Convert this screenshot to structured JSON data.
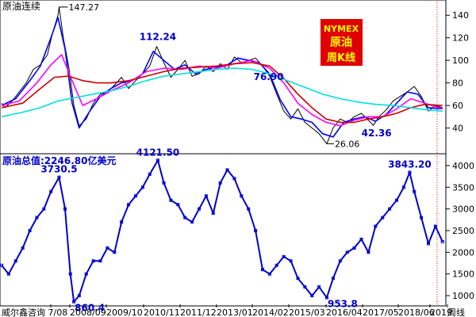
{
  "chart_data": [
    {
      "type": "line",
      "panel": "upper",
      "title": "原油连续",
      "badge": [
        "NYMEX",
        "原油",
        "周K线"
      ],
      "ylim": [
        20,
        150
      ],
      "y_ticks": [
        40,
        60,
        80,
        100,
        120,
        140
      ],
      "grid": false,
      "annotations": [
        {
          "text": "147.27",
          "x": 2008.53,
          "y": 147.27
        },
        {
          "text": "112.24",
          "x": 2011.33,
          "y": 112.24
        },
        {
          "text": "76.90",
          "x": 2014.47,
          "y": 76.9
        },
        {
          "text": "26.06",
          "x": 2016.12,
          "y": 26.06
        },
        {
          "text": "42.36",
          "x": 2017.44,
          "y": 42.36
        }
      ],
      "series": [
        {
          "role": "price",
          "color": "#000000",
          "x": [
            2006.9,
            2007.0,
            2007.2,
            2007.4,
            2007.6,
            2007.8,
            2008.0,
            2008.2,
            2008.35,
            2008.5,
            2008.53,
            2008.65,
            2008.8,
            2008.95,
            2009.1,
            2009.3,
            2009.5,
            2009.7,
            2009.9,
            2010.1,
            2010.3,
            2010.5,
            2010.7,
            2010.9,
            2011.1,
            2011.3,
            2011.5,
            2011.7,
            2011.9,
            2012.1,
            2012.3,
            2012.5,
            2012.7,
            2012.9,
            2013.1,
            2013.3,
            2013.5,
            2013.7,
            2013.9,
            2014.1,
            2014.3,
            2014.5,
            2014.7,
            2014.9,
            2015.1,
            2015.3,
            2015.5,
            2015.7,
            2015.9,
            2016.12,
            2016.3,
            2016.5,
            2016.7,
            2016.9,
            2017.1,
            2017.3,
            2017.44,
            2017.6,
            2017.8,
            2018.0,
            2018.2,
            2018.4,
            2018.6,
            2018.8,
            2019.0,
            2019.2,
            2019.4
          ],
          "y": [
            62,
            58,
            64,
            72,
            80,
            92,
            96,
            105,
            125,
            140,
            147.27,
            120,
            95,
            60,
            42,
            48,
            62,
            70,
            72,
            78,
            85,
            75,
            82,
            88,
            95,
            112.24,
            98,
            85,
            92,
            100,
            86,
            88,
            95,
            90,
            97,
            92,
            103,
            98,
            100,
            102,
            95,
            86,
            70,
            55,
            48,
            57,
            45,
            40,
            35,
            26.06,
            40,
            48,
            45,
            50,
            53,
            47,
            42.36,
            50,
            56,
            64,
            68,
            72,
            76.9,
            68,
            55,
            60,
            58
          ]
        },
        {
          "role": "ma-short",
          "color": "#0000ff",
          "x": [
            2006.9,
            2007.3,
            2007.7,
            2008.0,
            2008.3,
            2008.5,
            2008.7,
            2008.9,
            2009.1,
            2009.4,
            2009.7,
            2010.0,
            2010.3,
            2010.6,
            2010.9,
            2011.2,
            2011.5,
            2011.8,
            2012.1,
            2012.4,
            2012.7,
            2013.0,
            2013.3,
            2013.6,
            2013.9,
            2014.2,
            2014.5,
            2014.8,
            2015.1,
            2015.4,
            2015.7,
            2016.0,
            2016.3,
            2016.6,
            2016.9,
            2017.2,
            2017.5,
            2017.8,
            2018.1,
            2018.4,
            2018.7,
            2019.0,
            2019.4
          ],
          "y": [
            60,
            66,
            82,
            95,
            120,
            138,
            110,
            62,
            40,
            55,
            68,
            75,
            80,
            82,
            88,
            108,
            100,
            92,
            96,
            88,
            92,
            94,
            96,
            102,
            100,
            98,
            88,
            65,
            50,
            48,
            45,
            35,
            32,
            45,
            48,
            50,
            46,
            52,
            62,
            72,
            70,
            58,
            57
          ]
        },
        {
          "role": "ma-mid",
          "color": "#ff00ff",
          "x": [
            2006.9,
            2007.4,
            2007.9,
            2008.3,
            2008.6,
            2008.9,
            2009.2,
            2009.6,
            2010.0,
            2010.5,
            2011.0,
            2011.5,
            2012.0,
            2012.5,
            2013.0,
            2013.5,
            2014.0,
            2014.5,
            2014.9,
            2015.3,
            2015.7,
            2016.1,
            2016.5,
            2016.9,
            2017.3,
            2017.7,
            2018.1,
            2018.5,
            2018.9,
            2019.4
          ],
          "y": [
            60,
            64,
            80,
            96,
            105,
            82,
            60,
            66,
            73,
            80,
            90,
            93,
            92,
            95,
            93,
            97,
            100,
            93,
            80,
            62,
            52,
            45,
            42,
            47,
            50,
            50,
            57,
            66,
            62,
            57
          ]
        },
        {
          "role": "ma-long",
          "color": "#cc0000",
          "x": [
            2006.9,
            2007.5,
            2008.0,
            2008.4,
            2008.8,
            2009.2,
            2009.6,
            2010.0,
            2010.5,
            2011.0,
            2011.5,
            2012.0,
            2012.5,
            2013.0,
            2013.5,
            2014.0,
            2014.5,
            2014.9,
            2015.3,
            2015.7,
            2016.1,
            2016.5,
            2016.9,
            2017.3,
            2017.7,
            2018.1,
            2018.5,
            2018.9,
            2019.4
          ],
          "y": [
            58,
            62,
            75,
            85,
            86,
            82,
            80,
            80,
            82,
            86,
            90,
            93,
            94,
            95,
            97,
            98,
            95,
            84,
            70,
            58,
            48,
            45,
            45,
            48,
            50,
            53,
            58,
            61,
            60
          ]
        },
        {
          "role": "ma-xlong",
          "color": "#00e0e0",
          "x": [
            2006.9,
            2007.5,
            2008.0,
            2008.5,
            2009.0,
            2009.5,
            2010.0,
            2010.5,
            2011.0,
            2011.5,
            2012.0,
            2012.5,
            2013.0,
            2013.5,
            2014.0,
            2014.5,
            2015.0,
            2015.5,
            2016.0,
            2016.5,
            2017.0,
            2017.5,
            2018.0,
            2018.5,
            2019.0,
            2019.4
          ],
          "y": [
            50,
            54,
            58,
            64,
            67,
            70,
            73,
            77,
            82,
            86,
            88,
            90,
            92,
            93,
            92,
            88,
            82,
            76,
            70,
            66,
            63,
            61,
            60,
            58,
            56,
            55
          ]
        }
      ]
    },
    {
      "type": "line",
      "panel": "lower",
      "title": "原油总值:2246.80亿美元",
      "ylim": [
        800,
        4200
      ],
      "y_ticks": [
        1000,
        1500,
        2000,
        2500,
        3000,
        3500,
        4000
      ],
      "x_tick_labels": [
        "威尔鑫咨询 7/08",
        "2008/09",
        "2009/10",
        "2010/11",
        "2011/12",
        "2013/01",
        "2014/02",
        "2015/03",
        "2016/04",
        "2017/05",
        "2018/06",
        "2019",
        "周线"
      ],
      "annotations": [
        {
          "text": "3730.5",
          "x": 2008.53,
          "y": 3730.5
        },
        {
          "text": "860.4",
          "x": 2008.95,
          "y": 860.4
        },
        {
          "text": "4121.50",
          "x": 2011.33,
          "y": 4121.5
        },
        {
          "text": "953.8",
          "x": 2016.12,
          "y": 953.8
        },
        {
          "text": "3843.20",
          "x": 2018.47,
          "y": 3843.2
        }
      ],
      "series": [
        {
          "role": "total-value",
          "color": "#0000cc",
          "x": [
            2006.9,
            2007.1,
            2007.3,
            2007.5,
            2007.7,
            2007.9,
            2008.1,
            2008.3,
            2008.53,
            2008.7,
            2008.85,
            2008.95,
            2009.1,
            2009.3,
            2009.5,
            2009.7,
            2009.9,
            2010.1,
            2010.3,
            2010.5,
            2010.7,
            2010.9,
            2011.1,
            2011.33,
            2011.5,
            2011.7,
            2011.9,
            2012.1,
            2012.3,
            2012.5,
            2012.7,
            2012.9,
            2013.1,
            2013.3,
            2013.5,
            2013.7,
            2013.9,
            2014.1,
            2014.3,
            2014.5,
            2014.7,
            2014.9,
            2015.1,
            2015.3,
            2015.5,
            2015.7,
            2015.9,
            2016.12,
            2016.3,
            2016.5,
            2016.7,
            2016.9,
            2017.1,
            2017.3,
            2017.5,
            2017.7,
            2017.9,
            2018.1,
            2018.3,
            2018.47,
            2018.6,
            2018.8,
            2019.0,
            2019.2,
            2019.4
          ],
          "y": [
            1700,
            1500,
            1800,
            2100,
            2500,
            2800,
            3000,
            3400,
            3730.5,
            3000,
            1500,
            860.4,
            1000,
            1500,
            1800,
            1800,
            2100,
            2000,
            2700,
            3100,
            3300,
            3500,
            3800,
            4121.5,
            3600,
            3200,
            3100,
            2800,
            2700,
            3000,
            3300,
            2900,
            3600,
            3900,
            3700,
            3300,
            3000,
            2500,
            1600,
            1500,
            1700,
            1900,
            1800,
            1400,
            1200,
            1000,
            1200,
            953.8,
            1400,
            1800,
            2000,
            2100,
            2300,
            2000,
            2600,
            2800,
            3000,
            3200,
            3500,
            3843.2,
            3400,
            2800,
            2200,
            2600,
            2246.8
          ]
        }
      ]
    }
  ]
}
